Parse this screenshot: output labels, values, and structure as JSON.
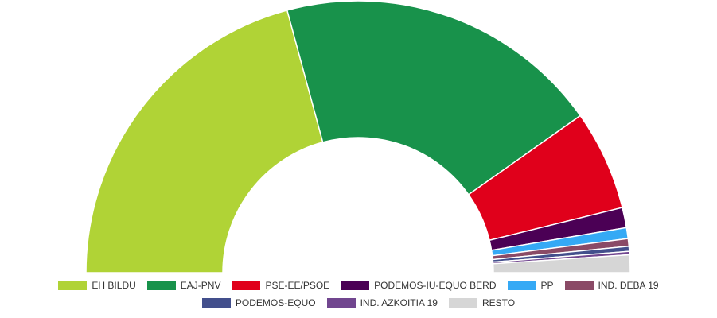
{
  "chart_data": {
    "type": "semi-donut",
    "categories": [
      "EH BILDU",
      "EAJ-PNV",
      "PSE-EE/PSOE",
      "PODEMOS-IU-EQUO BERD",
      "PP",
      "IND. DEBA 19",
      "PODEMOS-EQUO",
      "IND. AZKOITIA 19",
      "RESTO"
    ],
    "values": [
      41.6,
      38.8,
      11.9,
      2.4,
      1.3,
      0.9,
      0.6,
      0.4,
      2.1
    ],
    "colors": [
      "#b0d336",
      "#18924b",
      "#e0001b",
      "#4b0055",
      "#35a9f5",
      "#8a4a66",
      "#434f8c",
      "#71468f",
      "#d6d6d6"
    ]
  }
}
